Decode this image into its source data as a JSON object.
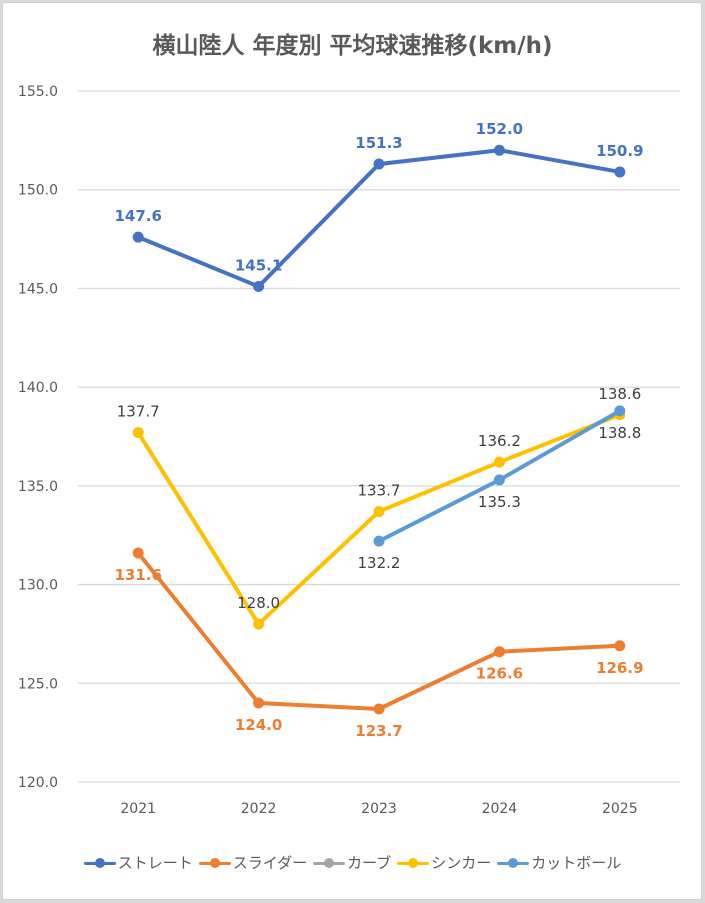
{
  "chart_data": {
    "type": "line",
    "title": "横山陸人 年度別 平均球速推移(km/h)",
    "xlabel": "",
    "ylabel": "",
    "categories": [
      "2021",
      "2022",
      "2023",
      "2024",
      "2025"
    ],
    "ylim": [
      120,
      155
    ],
    "yticks": [
      "120.0",
      "125.0",
      "130.0",
      "135.0",
      "140.0",
      "145.0",
      "150.0",
      "155.0"
    ],
    "grid": true,
    "legend_position": "bottom",
    "series": [
      {
        "name": "ストレート",
        "color": "#4472c4",
        "label_color": "#4472c4",
        "label_pos": [
          "above",
          "above",
          "above",
          "above",
          "above"
        ],
        "values": [
          147.6,
          145.1,
          151.3,
          152.0,
          150.9
        ],
        "labels": [
          "147.6",
          "145.1",
          "151.3",
          "152.0",
          "150.9"
        ]
      },
      {
        "name": "スライダー",
        "color": "#ed7d31",
        "label_color": "#ed7d31",
        "label_pos": [
          "below",
          "below",
          "below",
          "below",
          "below"
        ],
        "values": [
          131.6,
          124.0,
          123.7,
          126.6,
          126.9
        ],
        "labels": [
          "131.6",
          "124.0",
          "123.7",
          "126.6",
          "126.9"
        ]
      },
      {
        "name": "カーブ",
        "color": "#a5a5a5",
        "label_color": "#404040",
        "label_pos": [],
        "values": [
          null,
          null,
          null,
          null,
          null
        ],
        "labels": []
      },
      {
        "name": "シンカー",
        "color": "#ffc000",
        "label_color": "#404040",
        "label_pos": [
          "above",
          "above",
          "above",
          "above",
          "above"
        ],
        "values": [
          137.7,
          128.0,
          133.7,
          136.2,
          138.6
        ],
        "labels": [
          "137.7",
          "128.0",
          "133.7",
          "136.2",
          "138.6"
        ]
      },
      {
        "name": "カットボール",
        "color": "#5b9bd5",
        "label_color": "#404040",
        "label_pos": [
          null,
          null,
          "below",
          "below",
          "below"
        ],
        "values": [
          null,
          null,
          132.2,
          135.3,
          138.8
        ],
        "labels": [
          "",
          "",
          "132.2",
          "135.3",
          "138.8"
        ]
      }
    ]
  }
}
